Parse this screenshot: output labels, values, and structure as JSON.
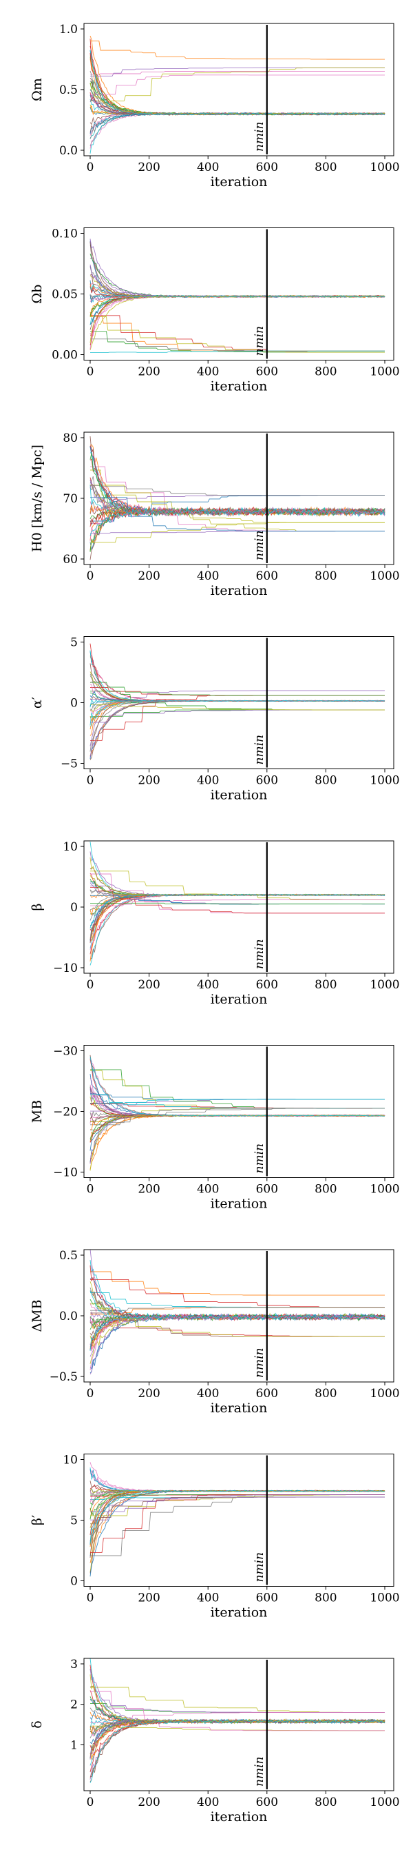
{
  "chart_data": [
    {
      "type": "line",
      "ylabel": "Ωm",
      "xlabel": "iteration",
      "xlim": [
        0,
        1000
      ],
      "ylim": [
        0,
        1
      ],
      "xticks": [
        "0",
        "200",
        "400",
        "600",
        "800",
        "1000"
      ],
      "yticks": [
        0.0,
        0.5,
        1.0
      ],
      "ytick_labels": [
        "0.0",
        "0.5",
        "1.0"
      ],
      "converged_value": 0.3,
      "secondary_values": [
        0.62,
        0.65,
        0.68,
        0.7,
        0.72,
        0.75
      ],
      "initial_range": [
        0,
        1
      ],
      "noise": 0.012,
      "n_min": 600,
      "n_min_label": "nmin"
    },
    {
      "type": "line",
      "ylabel": "Ωb",
      "xlabel": "iteration",
      "xlim": [
        0,
        1000
      ],
      "ylim": [
        0,
        0.1
      ],
      "xticks": [
        "0",
        "200",
        "400",
        "600",
        "800",
        "1000"
      ],
      "yticks": [
        0.0,
        0.05,
        0.1
      ],
      "ytick_labels": [
        "0.00",
        "0.05",
        "0.10"
      ],
      "converged_value": 0.048,
      "secondary_values": [
        0.002,
        0.003
      ],
      "initial_range": [
        0,
        0.1
      ],
      "noise": 0.001,
      "n_min": 600,
      "n_min_label": "nmin"
    },
    {
      "type": "line",
      "ylabel": "H0 [km/s / Mpc]",
      "xlabel": "iteration",
      "xlim": [
        0,
        1000
      ],
      "ylim": [
        60,
        80
      ],
      "xticks": [
        "0",
        "200",
        "400",
        "600",
        "800",
        "1000"
      ],
      "yticks": [
        60,
        70,
        80
      ],
      "ytick_labels": [
        "60",
        "70",
        "80"
      ],
      "converged_value": 67.8,
      "secondary_values": [
        64.6,
        70.5,
        66.0
      ],
      "initial_range": [
        60,
        80
      ],
      "noise": 0.8,
      "n_min": 600,
      "n_min_label": "nmin"
    },
    {
      "type": "line",
      "ylabel": "α′",
      "xlabel": "iteration",
      "xlim": [
        0,
        1000
      ],
      "ylim": [
        -5,
        5
      ],
      "xticks": [
        "0",
        "200",
        "400",
        "600",
        "800",
        "1000"
      ],
      "yticks": [
        -5,
        0,
        5
      ],
      "ytick_labels": [
        "−5",
        "0",
        "5"
      ],
      "converged_value": 0.15,
      "secondary_values": [
        1.0,
        -0.6,
        0.6
      ],
      "initial_range": [
        -5,
        5
      ],
      "noise": 0.05,
      "n_min": 600,
      "n_min_label": "nmin"
    },
    {
      "type": "line",
      "ylabel": "β",
      "xlabel": "iteration",
      "xlim": [
        0,
        1000
      ],
      "ylim": [
        -10,
        10
      ],
      "xticks": [
        "0",
        "200",
        "400",
        "600",
        "800",
        "1000"
      ],
      "yticks": [
        -10,
        0,
        10
      ],
      "ytick_labels": [
        "−10",
        "0",
        "10"
      ],
      "converged_value": 2.0,
      "secondary_values": [
        -3.0,
        -1.0,
        0.5,
        1.2
      ],
      "initial_range": [
        -10,
        10
      ],
      "noise": 0.15,
      "n_min": 600,
      "n_min_label": "nmin"
    },
    {
      "type": "line",
      "ylabel": "MB",
      "xlabel": "iteration",
      "xlim": [
        0,
        1000
      ],
      "ylim": [
        -30,
        -10
      ],
      "xticks": [
        "0",
        "200",
        "400",
        "600",
        "800",
        "1000"
      ],
      "yticks": [
        -30,
        -20,
        -10
      ],
      "ytick_labels": [
        "−30",
        "−20",
        "−10"
      ],
      "converged_value": -19.3,
      "secondary_values": [
        -22.0,
        -20.5
      ],
      "initial_range": [
        -30,
        -10
      ],
      "noise": 0.15,
      "n_min": 600,
      "n_min_label": "nmin",
      "y_inverted": true
    },
    {
      "type": "line",
      "ylabel": "ΔMB",
      "xlabel": "iteration",
      "xlim": [
        0,
        1000
      ],
      "ylim": [
        -0.5,
        0.5
      ],
      "xticks": [
        "0",
        "200",
        "400",
        "600",
        "800",
        "1000"
      ],
      "yticks": [
        -0.5,
        0.0,
        0.5
      ],
      "ytick_labels": [
        "−0.5",
        "0.0",
        "0.5"
      ],
      "converged_value": -0.01,
      "secondary_values": [
        0.17,
        -0.17,
        0.07
      ],
      "initial_range": [
        -0.5,
        0.5
      ],
      "noise": 0.03,
      "n_min": 600,
      "n_min_label": "nmin"
    },
    {
      "type": "line",
      "ylabel": "β′",
      "xlabel": "iteration",
      "xlim": [
        0,
        1000
      ],
      "ylim": [
        0,
        10
      ],
      "xticks": [
        "0",
        "200",
        "400",
        "600",
        "800",
        "1000"
      ],
      "yticks": [
        0,
        5,
        10
      ],
      "ytick_labels": [
        "0",
        "5",
        "10"
      ],
      "converged_value": 7.4,
      "secondary_values": [
        6.9,
        7.1
      ],
      "initial_range": [
        0,
        10
      ],
      "noise": 0.08,
      "n_min": 600,
      "n_min_label": "nmin"
    },
    {
      "type": "line",
      "ylabel": "δ",
      "xlabel": "iteration",
      "xlim": [
        0,
        1000
      ],
      "ylim": [
        0,
        3
      ],
      "xticks": [
        "0",
        "200",
        "400",
        "600",
        "800",
        "1000"
      ],
      "yticks": [
        1,
        2,
        3
      ],
      "ytick_labels": [
        "1",
        "2",
        "3"
      ],
      "converged_value": 1.58,
      "secondary_values": [
        1.35,
        1.8
      ],
      "initial_range": [
        0,
        3
      ],
      "noise": 0.06,
      "n_min": 600,
      "n_min_label": "nmin"
    }
  ],
  "palette": [
    "#1f77b4",
    "#ff7f0e",
    "#2ca02c",
    "#d62728",
    "#9467bd",
    "#8c564b",
    "#e377c2",
    "#7f7f7f",
    "#bcbd22",
    "#17becf"
  ]
}
